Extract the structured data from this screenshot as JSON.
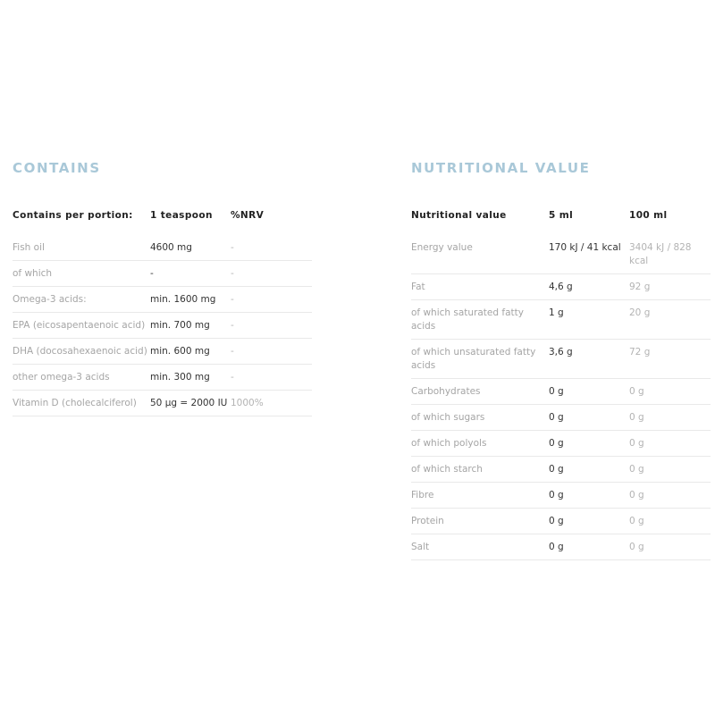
{
  "contains": {
    "title": "CONTAINS",
    "headers": [
      "Contains per portion:",
      "1 teaspoon",
      "%NRV"
    ],
    "rows": [
      [
        "Fish oil",
        "4600 mg",
        "-"
      ],
      [
        "of which",
        "-",
        "-"
      ],
      [
        "Omega-3 acids:",
        "min. 1600 mg",
        "-"
      ],
      [
        "EPA (eicosapentaenoic acid)",
        "min. 700 mg",
        "-"
      ],
      [
        "DHA (docosahexaenoic acid)",
        "min. 600 mg",
        "-"
      ],
      [
        "other omega-3 acids",
        "min. 300 mg",
        "-"
      ],
      [
        "Vitamin D (cholecalciferol)",
        "50 µg = 2000 IU",
        "1000%"
      ]
    ]
  },
  "nutrition": {
    "title": "NUTRITIONAL VALUE",
    "headers": [
      "Nutritional value",
      "5 ml",
      "100 ml"
    ],
    "rows": [
      [
        "Energy value",
        "170 kJ / 41 kcal",
        "3404 kJ / 828 kcal"
      ],
      [
        "Fat",
        "4,6 g",
        "92 g"
      ],
      [
        "of which saturated fatty acids",
        "1 g",
        "20 g"
      ],
      [
        "of which unsaturated fatty acids",
        "3,6 g",
        "72 g"
      ],
      [
        "Carbohydrates",
        "0 g",
        "0 g"
      ],
      [
        "of which sugars",
        "0 g",
        "0 g"
      ],
      [
        "of which polyols",
        "0 g",
        "0 g"
      ],
      [
        "of which starch",
        "0 g",
        "0 g"
      ],
      [
        "Fibre",
        "0 g",
        "0 g"
      ],
      [
        "Protein",
        "0 g",
        "0 g"
      ],
      [
        "Salt",
        "0 g",
        "0 g"
      ]
    ]
  }
}
